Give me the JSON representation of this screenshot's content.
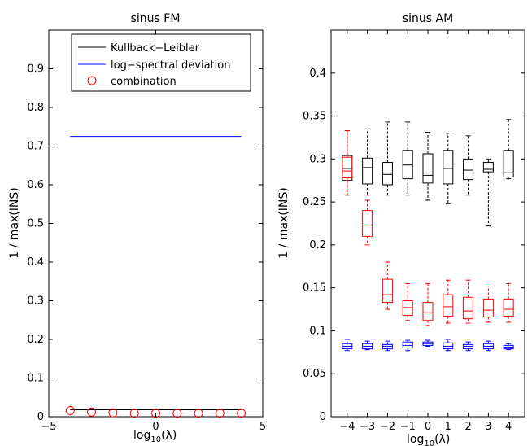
{
  "chart_data": [
    {
      "type": "line",
      "title": "sinus FM",
      "xlabel_base": "log",
      "xlabel_sub": "10",
      "xlabel_arg": "(λ)",
      "ylabel": "1 / max(INS)",
      "xlim": [
        -5,
        5
      ],
      "ylim": [
        0,
        1
      ],
      "xticks": [
        -5,
        0,
        5
      ],
      "xtick_labels": [
        "−5",
        "0",
        "5"
      ],
      "yticks": [
        0,
        0.1,
        0.2,
        0.3,
        0.4,
        0.5,
        0.6,
        0.7,
        0.8,
        0.9
      ],
      "ytick_labels": [
        "0",
        "0.1",
        "0.2",
        "0.3",
        "0.4",
        "0.5",
        "0.6",
        "0.7",
        "0.8",
        "0.9"
      ],
      "grid": false,
      "legend_position": "top-right",
      "series": [
        {
          "name": "Kullback−Leibler",
          "style": "line",
          "color": "#000000",
          "x": [
            -4,
            4
          ],
          "y": [
            0.018,
            0.018
          ]
        },
        {
          "name": "log−spectral deviation",
          "style": "line",
          "color": "#0000ff",
          "x": [
            -4,
            4
          ],
          "y": [
            0.725,
            0.725
          ]
        },
        {
          "name": "combination",
          "style": "circle",
          "color": "#ff0000",
          "x": [
            -4,
            -3,
            -2,
            -1,
            0,
            1,
            2,
            3,
            4
          ],
          "y": [
            0.016,
            0.012,
            0.01,
            0.009,
            0.009,
            0.009,
            0.009,
            0.009,
            0.009
          ]
        }
      ]
    },
    {
      "type": "box",
      "title": "sinus AM",
      "xlabel_base": "log",
      "xlabel_sub": "10",
      "xlabel_arg": "(λ)",
      "ylabel": "1 / max(INS)",
      "xlim": [
        -4.8,
        4.8
      ],
      "ylim": [
        0,
        0.45
      ],
      "xticks": [
        -4,
        -3,
        -2,
        -1,
        0,
        1,
        2,
        3,
        4
      ],
      "xtick_labels": [
        "−4",
        "−3",
        "−2",
        "−1",
        "0",
        "1",
        "2",
        "3",
        "4"
      ],
      "yticks": [
        0,
        0.05,
        0.1,
        0.15,
        0.2,
        0.25,
        0.3,
        0.35,
        0.4
      ],
      "ytick_labels": [
        "0",
        "0.05",
        "0.1",
        "0.15",
        "0.2",
        "0.25",
        "0.3",
        "0.35",
        "0.4"
      ],
      "grid": false,
      "series": [
        {
          "color": "#000000",
          "boxes": [
            {
              "x": -4,
              "min": 0.258,
              "q1": 0.275,
              "median": 0.289,
              "q3": 0.304,
              "max": 0.333
            },
            {
              "x": -3,
              "min": 0.258,
              "q1": 0.271,
              "median": 0.29,
              "q3": 0.301,
              "max": 0.335
            },
            {
              "x": -2,
              "min": 0.258,
              "q1": 0.27,
              "median": 0.282,
              "q3": 0.296,
              "max": 0.343
            },
            {
              "x": -1,
              "min": 0.258,
              "q1": 0.277,
              "median": 0.293,
              "q3": 0.31,
              "max": 0.343
            },
            {
              "x": 0,
              "min": 0.252,
              "q1": 0.272,
              "median": 0.281,
              "q3": 0.306,
              "max": 0.331
            },
            {
              "x": 1,
              "min": 0.248,
              "q1": 0.271,
              "median": 0.289,
              "q3": 0.31,
              "max": 0.33
            },
            {
              "x": 2,
              "min": 0.258,
              "q1": 0.276,
              "median": 0.287,
              "q3": 0.3,
              "max": 0.327
            },
            {
              "x": 3,
              "min": 0.222,
              "q1": 0.285,
              "median": 0.288,
              "q3": 0.296,
              "max": 0.3
            },
            {
              "x": 4,
              "min": 0.277,
              "q1": 0.279,
              "median": 0.284,
              "q3": 0.31,
              "max": 0.346
            }
          ]
        },
        {
          "color": "#ff0000",
          "boxes": [
            {
              "x": -4,
              "min": 0.258,
              "q1": 0.278,
              "median": 0.286,
              "q3": 0.302,
              "max": 0.333
            },
            {
              "x": -3,
              "min": 0.2,
              "q1": 0.21,
              "median": 0.223,
              "q3": 0.24,
              "max": 0.252
            },
            {
              "x": -2,
              "min": 0.125,
              "q1": 0.133,
              "median": 0.142,
              "q3": 0.16,
              "max": 0.18
            },
            {
              "x": -1,
              "min": 0.112,
              "q1": 0.118,
              "median": 0.127,
              "q3": 0.135,
              "max": 0.155
            },
            {
              "x": 0,
              "min": 0.106,
              "q1": 0.112,
              "median": 0.121,
              "q3": 0.133,
              "max": 0.155
            },
            {
              "x": 1,
              "min": 0.109,
              "q1": 0.117,
              "median": 0.128,
              "q3": 0.142,
              "max": 0.159
            },
            {
              "x": 2,
              "min": 0.109,
              "q1": 0.114,
              "median": 0.123,
              "q3": 0.139,
              "max": 0.159
            },
            {
              "x": 3,
              "min": 0.11,
              "q1": 0.116,
              "median": 0.124,
              "q3": 0.137,
              "max": 0.152
            },
            {
              "x": 4,
              "min": 0.11,
              "q1": 0.117,
              "median": 0.125,
              "q3": 0.137,
              "max": 0.155
            }
          ]
        },
        {
          "color": "#0000ff",
          "boxes": [
            {
              "x": -4,
              "min": 0.077,
              "q1": 0.079,
              "median": 0.082,
              "q3": 0.085,
              "max": 0.09
            },
            {
              "x": -3,
              "min": 0.078,
              "q1": 0.079,
              "median": 0.082,
              "q3": 0.085,
              "max": 0.088
            },
            {
              "x": -2,
              "min": 0.077,
              "q1": 0.079,
              "median": 0.082,
              "q3": 0.084,
              "max": 0.088
            },
            {
              "x": -1,
              "min": 0.077,
              "q1": 0.08,
              "median": 0.083,
              "q3": 0.087,
              "max": 0.089
            },
            {
              "x": 0,
              "min": 0.082,
              "q1": 0.083,
              "median": 0.085,
              "q3": 0.087,
              "max": 0.089
            },
            {
              "x": 1,
              "min": 0.077,
              "q1": 0.079,
              "median": 0.082,
              "q3": 0.086,
              "max": 0.09
            },
            {
              "x": 2,
              "min": 0.077,
              "q1": 0.079,
              "median": 0.082,
              "q3": 0.084,
              "max": 0.087
            },
            {
              "x": 3,
              "min": 0.077,
              "q1": 0.079,
              "median": 0.082,
              "q3": 0.085,
              "max": 0.088
            },
            {
              "x": 4,
              "min": 0.078,
              "q1": 0.079,
              "median": 0.081,
              "q3": 0.083,
              "max": 0.085
            }
          ]
        }
      ]
    }
  ]
}
